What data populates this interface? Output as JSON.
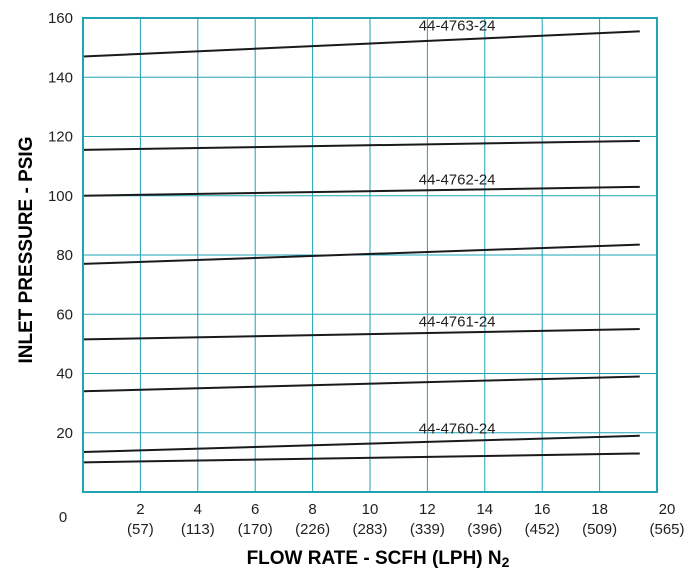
{
  "chart_data": {
    "type": "line",
    "xlabel": "FLOW RATE - SCFH (LPH) N",
    "xlabel_subscript": "2",
    "ylabel": "INLET PRESSURE - PSIG",
    "xlim": [
      0,
      20
    ],
    "ylim": [
      0,
      160
    ],
    "x_ticks": [
      {
        "value": 0,
        "label": "0",
        "sub": ""
      },
      {
        "value": 2,
        "label": "2",
        "sub": "(57)"
      },
      {
        "value": 4,
        "label": "4",
        "sub": "(113)"
      },
      {
        "value": 6,
        "label": "6",
        "sub": "(170)"
      },
      {
        "value": 8,
        "label": "8",
        "sub": "(226)"
      },
      {
        "value": 10,
        "label": "10",
        "sub": "(283)"
      },
      {
        "value": 12,
        "label": "12",
        "sub": "(339)"
      },
      {
        "value": 14,
        "label": "14",
        "sub": "(396)"
      },
      {
        "value": 16,
        "label": "16",
        "sub": "(452)"
      },
      {
        "value": 18,
        "label": "18",
        "sub": "(509)"
      },
      {
        "value": 20,
        "label": "20",
        "sub": "(565)"
      }
    ],
    "y_ticks": [
      {
        "value": 20,
        "label": "20"
      },
      {
        "value": 40,
        "label": "40"
      },
      {
        "value": 60,
        "label": "60"
      },
      {
        "value": 80,
        "label": "80"
      },
      {
        "value": 100,
        "label": "100"
      },
      {
        "value": 120,
        "label": "120"
      },
      {
        "value": 140,
        "label": "140"
      },
      {
        "value": 160,
        "label": "160"
      }
    ],
    "grid": true,
    "frame_color": "#1fa3b5",
    "line_color": "#1a1a1a",
    "series": [
      {
        "label": "",
        "x": [
          0,
          19.4
        ],
        "y": [
          10,
          13
        ]
      },
      {
        "label": "",
        "x": [
          0,
          19.4
        ],
        "y": [
          13.5,
          19
        ]
      },
      {
        "label": "",
        "x": [
          0,
          19.4
        ],
        "y": [
          34,
          39
        ]
      },
      {
        "label": "",
        "x": [
          0,
          19.4
        ],
        "y": [
          51.5,
          55
        ]
      },
      {
        "label": "",
        "x": [
          0,
          19.4
        ],
        "y": [
          77,
          83.5
        ]
      },
      {
        "label": "",
        "x": [
          0,
          19.4
        ],
        "y": [
          100,
          103
        ]
      },
      {
        "label": "",
        "x": [
          0,
          19.4
        ],
        "y": [
          115.5,
          118.5
        ]
      },
      {
        "label": "",
        "x": [
          0,
          19.4
        ],
        "y": [
          147,
          155.5
        ]
      }
    ],
    "annotations": [
      {
        "text": "44-4763-24",
        "x": 11.7,
        "y": 155.8
      },
      {
        "text": "44-4762-24",
        "x": 11.7,
        "y": 103.8
      },
      {
        "text": "44-4761-24",
        "x": 11.7,
        "y": 55.8
      },
      {
        "text": "44-4760-24",
        "x": 11.7,
        "y": 19.8
      }
    ]
  }
}
